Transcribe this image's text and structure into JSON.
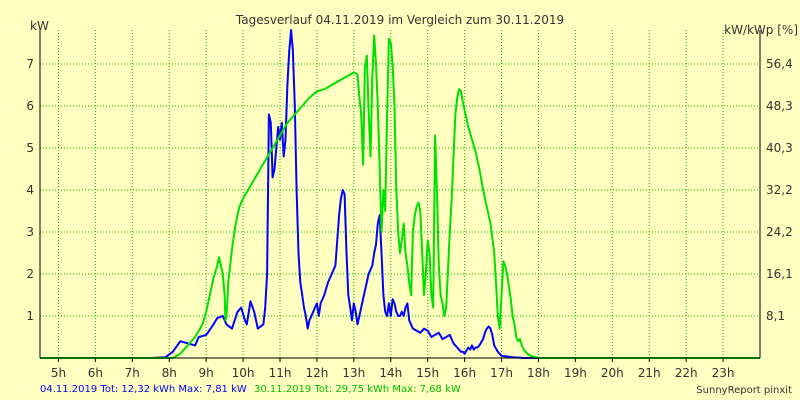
{
  "chart_data": {
    "type": "line",
    "title": "Tagesverlauf 04.11.2019 im Vergleich zum 30.11.2019",
    "ylabel": "kW",
    "y2label": "kW/kWp [%]",
    "xlim": [
      4.5,
      24.0
    ],
    "ylim": [
      0,
      7.81
    ],
    "x_ticks": [
      5,
      6,
      7,
      8,
      9,
      10,
      11,
      12,
      13,
      14,
      15,
      16,
      17,
      18,
      19,
      20,
      21,
      22,
      23
    ],
    "x_tick_labels": [
      "5h",
      "6h",
      "7h",
      "8h",
      "9h",
      "10h",
      "11h",
      "12h",
      "13h",
      "14h",
      "15h",
      "16h",
      "17h",
      "18h",
      "19h",
      "20h",
      "21h",
      "22h",
      "23h"
    ],
    "y_ticks": [
      1,
      2,
      3,
      4,
      5,
      6,
      7
    ],
    "y_tick_labels": [
      "1",
      "2",
      "3",
      "4",
      "5",
      "6",
      "7"
    ],
    "y2_ticks": [
      1.0,
      2.0,
      3.0,
      4.0,
      5.0,
      6.0,
      7.0
    ],
    "y2_tick_labels": [
      "8,1",
      "16,1",
      "24,2",
      "32,2",
      "40,3",
      "48,3",
      "56,4"
    ],
    "grid": true,
    "colors": {
      "background": "#ffffc0",
      "grid": "#00c000",
      "axis": "#000000"
    },
    "series": [
      {
        "color": "#0000ff",
        "points": [
          [
            4.5,
            0.0
          ],
          [
            7.5,
            0.0
          ],
          [
            7.9,
            0.02
          ],
          [
            8.1,
            0.15
          ],
          [
            8.3,
            0.4
          ],
          [
            8.5,
            0.35
          ],
          [
            8.7,
            0.3
          ],
          [
            8.8,
            0.5
          ],
          [
            9.0,
            0.55
          ],
          [
            9.2,
            0.8
          ],
          [
            9.3,
            0.95
          ],
          [
            9.45,
            1.0
          ],
          [
            9.55,
            0.8
          ],
          [
            9.7,
            0.7
          ],
          [
            9.85,
            1.1
          ],
          [
            9.95,
            1.2
          ],
          [
            10.05,
            0.9
          ],
          [
            10.1,
            0.8
          ],
          [
            10.2,
            1.35
          ],
          [
            10.3,
            1.1
          ],
          [
            10.4,
            0.7
          ],
          [
            10.55,
            0.8
          ],
          [
            10.6,
            1.2
          ],
          [
            10.65,
            2.0
          ],
          [
            10.7,
            5.8
          ],
          [
            10.75,
            5.6
          ],
          [
            10.8,
            4.3
          ],
          [
            10.85,
            4.5
          ],
          [
            10.9,
            5.0
          ],
          [
            10.95,
            5.5
          ],
          [
            11.0,
            5.2
          ],
          [
            11.05,
            5.6
          ],
          [
            11.1,
            4.8
          ],
          [
            11.15,
            5.2
          ],
          [
            11.2,
            6.5
          ],
          [
            11.25,
            7.3
          ],
          [
            11.3,
            7.81
          ],
          [
            11.35,
            7.3
          ],
          [
            11.4,
            6.0
          ],
          [
            11.45,
            4.0
          ],
          [
            11.5,
            2.5
          ],
          [
            11.55,
            1.8
          ],
          [
            11.6,
            1.5
          ],
          [
            11.65,
            1.2
          ],
          [
            11.7,
            1.0
          ],
          [
            11.75,
            0.7
          ],
          [
            11.8,
            0.9
          ],
          [
            11.9,
            1.1
          ],
          [
            12.0,
            1.3
          ],
          [
            12.05,
            1.0
          ],
          [
            12.1,
            1.3
          ],
          [
            12.2,
            1.5
          ],
          [
            12.3,
            1.8
          ],
          [
            12.4,
            2.0
          ],
          [
            12.5,
            2.2
          ],
          [
            12.6,
            3.4
          ],
          [
            12.65,
            3.8
          ],
          [
            12.7,
            4.0
          ],
          [
            12.75,
            3.9
          ],
          [
            12.8,
            2.5
          ],
          [
            12.85,
            1.5
          ],
          [
            12.9,
            1.2
          ],
          [
            12.95,
            0.9
          ],
          [
            13.0,
            1.3
          ],
          [
            13.05,
            1.1
          ],
          [
            13.1,
            0.8
          ],
          [
            13.15,
            1.0
          ],
          [
            13.2,
            1.2
          ],
          [
            13.3,
            1.6
          ],
          [
            13.4,
            2.0
          ],
          [
            13.5,
            2.2
          ],
          [
            13.55,
            2.5
          ],
          [
            13.6,
            2.7
          ],
          [
            13.65,
            3.2
          ],
          [
            13.7,
            3.4
          ],
          [
            13.75,
            2.5
          ],
          [
            13.8,
            1.5
          ],
          [
            13.85,
            1.1
          ],
          [
            13.9,
            1.0
          ],
          [
            13.95,
            1.3
          ],
          [
            14.0,
            1.0
          ],
          [
            14.05,
            1.4
          ],
          [
            14.1,
            1.3
          ],
          [
            14.15,
            1.1
          ],
          [
            14.2,
            1.0
          ],
          [
            14.25,
            1.0
          ],
          [
            14.3,
            1.1
          ],
          [
            14.35,
            1.0
          ],
          [
            14.4,
            1.2
          ],
          [
            14.45,
            1.3
          ],
          [
            14.5,
            0.9
          ],
          [
            14.6,
            0.7
          ],
          [
            14.7,
            0.65
          ],
          [
            14.8,
            0.6
          ],
          [
            14.9,
            0.7
          ],
          [
            15.0,
            0.65
          ],
          [
            15.1,
            0.5
          ],
          [
            15.2,
            0.55
          ],
          [
            15.3,
            0.6
          ],
          [
            15.4,
            0.45
          ],
          [
            15.5,
            0.5
          ],
          [
            15.6,
            0.55
          ],
          [
            15.7,
            0.35
          ],
          [
            15.8,
            0.25
          ],
          [
            15.9,
            0.15
          ],
          [
            15.95,
            0.15
          ],
          [
            16.0,
            0.1
          ],
          [
            16.1,
            0.25
          ],
          [
            16.15,
            0.2
          ],
          [
            16.2,
            0.3
          ],
          [
            16.25,
            0.2
          ],
          [
            16.3,
            0.25
          ],
          [
            16.35,
            0.25
          ],
          [
            16.4,
            0.3
          ],
          [
            16.5,
            0.45
          ],
          [
            16.55,
            0.6
          ],
          [
            16.6,
            0.7
          ],
          [
            16.65,
            0.75
          ],
          [
            16.7,
            0.7
          ],
          [
            16.75,
            0.55
          ],
          [
            16.8,
            0.3
          ],
          [
            16.9,
            0.15
          ],
          [
            17.0,
            0.05
          ],
          [
            17.3,
            0.02
          ],
          [
            17.6,
            0.0
          ],
          [
            24.0,
            0.0
          ]
        ]
      },
      {
        "color": "#00e000",
        "points": [
          [
            4.5,
            0.0
          ],
          [
            8.1,
            0.0
          ],
          [
            8.3,
            0.1
          ],
          [
            8.5,
            0.3
          ],
          [
            8.7,
            0.5
          ],
          [
            8.9,
            0.8
          ],
          [
            9.0,
            1.1
          ],
          [
            9.1,
            1.5
          ],
          [
            9.2,
            1.9
          ],
          [
            9.3,
            2.2
          ],
          [
            9.35,
            2.4
          ],
          [
            9.4,
            2.2
          ],
          [
            9.45,
            2.0
          ],
          [
            9.5,
            1.5
          ],
          [
            9.52,
            0.9
          ],
          [
            9.55,
            1.0
          ],
          [
            9.6,
            1.8
          ],
          [
            9.7,
            2.6
          ],
          [
            9.8,
            3.2
          ],
          [
            9.9,
            3.6
          ],
          [
            10.0,
            3.8
          ],
          [
            10.2,
            4.1
          ],
          [
            10.4,
            4.4
          ],
          [
            10.6,
            4.7
          ],
          [
            10.8,
            5.0
          ],
          [
            11.0,
            5.3
          ],
          [
            11.2,
            5.6
          ],
          [
            11.4,
            5.8
          ],
          [
            11.6,
            6.0
          ],
          [
            11.8,
            6.2
          ],
          [
            12.0,
            6.35
          ],
          [
            12.2,
            6.4
          ],
          [
            12.4,
            6.5
          ],
          [
            12.6,
            6.6
          ],
          [
            12.8,
            6.7
          ],
          [
            13.0,
            6.8
          ],
          [
            13.1,
            6.75
          ],
          [
            13.15,
            6.2
          ],
          [
            13.2,
            5.8
          ],
          [
            13.25,
            4.6
          ],
          [
            13.3,
            6.9
          ],
          [
            13.35,
            7.2
          ],
          [
            13.4,
            5.9
          ],
          [
            13.45,
            4.8
          ],
          [
            13.5,
            6.7
          ],
          [
            13.55,
            7.68
          ],
          [
            13.6,
            7.0
          ],
          [
            13.65,
            6.0
          ],
          [
            13.7,
            4.5
          ],
          [
            13.75,
            3.0
          ],
          [
            13.8,
            4.0
          ],
          [
            13.85,
            3.5
          ],
          [
            13.9,
            5.8
          ],
          [
            13.95,
            7.6
          ],
          [
            14.0,
            7.5
          ],
          [
            14.05,
            7.0
          ],
          [
            14.1,
            6.0
          ],
          [
            14.15,
            4.0
          ],
          [
            14.2,
            3.0
          ],
          [
            14.25,
            2.5
          ],
          [
            14.3,
            2.8
          ],
          [
            14.35,
            3.2
          ],
          [
            14.4,
            2.5
          ],
          [
            14.45,
            2.2
          ],
          [
            14.5,
            1.8
          ],
          [
            14.55,
            1.5
          ],
          [
            14.6,
            3.0
          ],
          [
            14.65,
            3.4
          ],
          [
            14.7,
            3.6
          ],
          [
            14.75,
            3.7
          ],
          [
            14.8,
            3.5
          ],
          [
            14.85,
            2.5
          ],
          [
            14.9,
            1.5
          ],
          [
            14.95,
            2.0
          ],
          [
            15.0,
            2.8
          ],
          [
            15.05,
            2.5
          ],
          [
            15.1,
            1.5
          ],
          [
            15.15,
            1.2
          ],
          [
            15.2,
            5.3
          ],
          [
            15.25,
            4.0
          ],
          [
            15.3,
            2.2
          ],
          [
            15.35,
            1.5
          ],
          [
            15.4,
            1.3
          ],
          [
            15.45,
            1.0
          ],
          [
            15.5,
            1.2
          ],
          [
            15.6,
            3.0
          ],
          [
            15.65,
            3.8
          ],
          [
            15.7,
            4.8
          ],
          [
            15.75,
            5.8
          ],
          [
            15.8,
            6.2
          ],
          [
            15.85,
            6.4
          ],
          [
            15.9,
            6.35
          ],
          [
            15.95,
            6.1
          ],
          [
            16.0,
            5.9
          ],
          [
            16.1,
            5.5
          ],
          [
            16.2,
            5.2
          ],
          [
            16.3,
            4.9
          ],
          [
            16.4,
            4.5
          ],
          [
            16.5,
            4.0
          ],
          [
            16.6,
            3.6
          ],
          [
            16.7,
            3.2
          ],
          [
            16.8,
            2.5
          ],
          [
            16.85,
            1.8
          ],
          [
            16.9,
            1.0
          ],
          [
            16.95,
            0.7
          ],
          [
            17.0,
            1.5
          ],
          [
            17.05,
            2.3
          ],
          [
            17.1,
            2.2
          ],
          [
            17.15,
            2.0
          ],
          [
            17.2,
            1.7
          ],
          [
            17.25,
            1.4
          ],
          [
            17.3,
            1.0
          ],
          [
            17.35,
            0.8
          ],
          [
            17.4,
            0.5
          ],
          [
            17.45,
            0.4
          ],
          [
            17.5,
            0.45
          ],
          [
            17.55,
            0.3
          ],
          [
            17.6,
            0.2
          ],
          [
            17.7,
            0.1
          ],
          [
            17.8,
            0.05
          ],
          [
            18.0,
            0.0
          ],
          [
            24.0,
            0.0
          ]
        ]
      }
    ]
  },
  "footer": {
    "series1_text": "04.11.2019 Tot: 12,32 kWh Max: 7,81 kW",
    "series2_text": "30.11.2019 Tot: 29,75 kWh Max: 7,68 kW",
    "credit": "SunnyReport pinxit"
  }
}
